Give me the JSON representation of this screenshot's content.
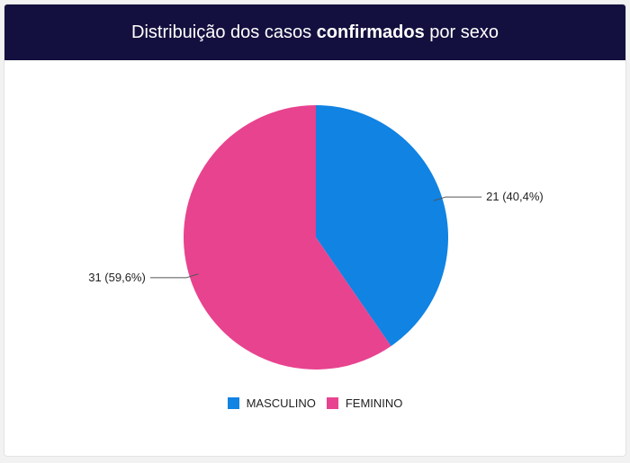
{
  "header": {
    "title_prefix": "Distribuição dos casos ",
    "title_bold": "confirmados",
    "title_suffix": " por sexo",
    "background": "#13103f"
  },
  "chart_data": {
    "type": "pie",
    "title": "Distribuição dos casos confirmados por sexo",
    "legend_position": "bottom",
    "slices": [
      {
        "label": "MASCULINO",
        "value": 21,
        "percent_label": "21 (40,4%)",
        "color": "#1083e3"
      },
      {
        "label": "FEMININO",
        "value": 31,
        "percent_label": "31 (59,6%)",
        "color": "#e8438f"
      }
    ]
  }
}
